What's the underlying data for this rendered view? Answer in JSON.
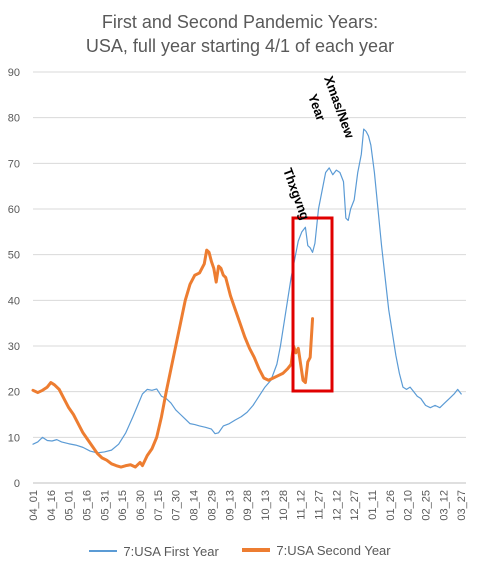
{
  "chart_data": {
    "type": "line",
    "title_line1": "First and Second Pandemic Years:",
    "title_line2": "USA, full year starting 4/1 of each year",
    "ylim": [
      0,
      90
    ],
    "yticks": [
      "0",
      "10",
      "20",
      "30",
      "40",
      "50",
      "60",
      "70",
      "80",
      "90"
    ],
    "x_labels": [
      "04_01",
      "04_16",
      "05_01",
      "05_16",
      "05_31",
      "06_15",
      "06_30",
      "07_15",
      "07_30",
      "08_14",
      "08_29",
      "09_13",
      "09_28",
      "10_13",
      "10_28",
      "11_12",
      "11_27",
      "12_12",
      "12_27",
      "01_11",
      "01_26",
      "02_10",
      "02_25",
      "03_12",
      "03_27"
    ],
    "grid": true,
    "legend_position": "bottom",
    "annotations": [
      "Thxgvng",
      "Xmas/New Year"
    ],
    "series": [
      {
        "name": "7:USA First Year",
        "color": "#5B9BD5",
        "points": [
          [
            0,
            8.5
          ],
          [
            4,
            9.0
          ],
          [
            8,
            10.0
          ],
          [
            12,
            9.3
          ],
          [
            16,
            9.2
          ],
          [
            20,
            9.5
          ],
          [
            24,
            9.0
          ],
          [
            30,
            8.6
          ],
          [
            36,
            8.3
          ],
          [
            42,
            7.8
          ],
          [
            48,
            7.0
          ],
          [
            54,
            6.6
          ],
          [
            60,
            6.8
          ],
          [
            66,
            7.2
          ],
          [
            72,
            8.5
          ],
          [
            78,
            11.0
          ],
          [
            84,
            14.5
          ],
          [
            88,
            17.0
          ],
          [
            92,
            19.5
          ],
          [
            96,
            20.5
          ],
          [
            100,
            20.3
          ],
          [
            104,
            20.6
          ],
          [
            108,
            19.0
          ],
          [
            112,
            18.5
          ],
          [
            116,
            17.5
          ],
          [
            120,
            16.0
          ],
          [
            124,
            15.0
          ],
          [
            128,
            14.0
          ],
          [
            132,
            13.0
          ],
          [
            136,
            12.8
          ],
          [
            140,
            12.5
          ],
          [
            145,
            12.2
          ],
          [
            150,
            11.8
          ],
          [
            153,
            10.8
          ],
          [
            156,
            11.0
          ],
          [
            160,
            12.5
          ],
          [
            165,
            13.0
          ],
          [
            170,
            13.8
          ],
          [
            175,
            14.5
          ],
          [
            180,
            15.5
          ],
          [
            185,
            17.0
          ],
          [
            190,
            19.0
          ],
          [
            195,
            21.0
          ],
          [
            200,
            22.5
          ],
          [
            205,
            26.0
          ],
          [
            208,
            30.0
          ],
          [
            211,
            35.0
          ],
          [
            214,
            40.0
          ],
          [
            217,
            45.0
          ],
          [
            220,
            49.0
          ],
          [
            223,
            53.0
          ],
          [
            226,
            55.0
          ],
          [
            229,
            56.0
          ],
          [
            231,
            52.0
          ],
          [
            233,
            51.5
          ],
          [
            235,
            50.5
          ],
          [
            237,
            52.5
          ],
          [
            240,
            60.0
          ],
          [
            243,
            64.0
          ],
          [
            246,
            68.0
          ],
          [
            249,
            69.0
          ],
          [
            252,
            67.5
          ],
          [
            255,
            68.5
          ],
          [
            258,
            68.0
          ],
          [
            261,
            66.0
          ],
          [
            263,
            58.0
          ],
          [
            265,
            57.5
          ],
          [
            267,
            60.0
          ],
          [
            270,
            62.0
          ],
          [
            273,
            68.0
          ],
          [
            276,
            72.0
          ],
          [
            278,
            77.5
          ],
          [
            280,
            77.0
          ],
          [
            282,
            76.0
          ],
          [
            284,
            74.0
          ],
          [
            287,
            68.0
          ],
          [
            290,
            60.0
          ],
          [
            293,
            52.0
          ],
          [
            296,
            45.0
          ],
          [
            299,
            38.0
          ],
          [
            302,
            33.0
          ],
          [
            305,
            28.0
          ],
          [
            308,
            24.0
          ],
          [
            311,
            21.0
          ],
          [
            314,
            20.5
          ],
          [
            317,
            21.0
          ],
          [
            320,
            20.0
          ],
          [
            323,
            19.0
          ],
          [
            326,
            18.5
          ],
          [
            330,
            17.0
          ],
          [
            334,
            16.5
          ],
          [
            338,
            17.0
          ],
          [
            342,
            16.5
          ],
          [
            346,
            17.5
          ],
          [
            350,
            18.5
          ],
          [
            354,
            19.5
          ],
          [
            357,
            20.5
          ],
          [
            360,
            19.5
          ]
        ]
      },
      {
        "name": "7:USA Second Year",
        "color": "#ED7D31",
        "points": [
          [
            0,
            20.3
          ],
          [
            4,
            19.8
          ],
          [
            8,
            20.3
          ],
          [
            12,
            21.0
          ],
          [
            15,
            22.0
          ],
          [
            18,
            21.5
          ],
          [
            22,
            20.5
          ],
          [
            26,
            18.5
          ],
          [
            30,
            16.5
          ],
          [
            34,
            15.0
          ],
          [
            38,
            13.0
          ],
          [
            42,
            11.0
          ],
          [
            46,
            9.5
          ],
          [
            50,
            8.0
          ],
          [
            54,
            6.5
          ],
          [
            58,
            5.5
          ],
          [
            62,
            5.0
          ],
          [
            66,
            4.2
          ],
          [
            70,
            3.8
          ],
          [
            74,
            3.5
          ],
          [
            78,
            3.8
          ],
          [
            82,
            4.0
          ],
          [
            86,
            3.5
          ],
          [
            90,
            4.5
          ],
          [
            92,
            3.8
          ],
          [
            96,
            6.0
          ],
          [
            100,
            7.5
          ],
          [
            104,
            10.0
          ],
          [
            108,
            14.5
          ],
          [
            112,
            20.0
          ],
          [
            116,
            25.0
          ],
          [
            120,
            30.0
          ],
          [
            124,
            35.0
          ],
          [
            128,
            40.0
          ],
          [
            132,
            43.5
          ],
          [
            136,
            45.5
          ],
          [
            140,
            46.0
          ],
          [
            144,
            48.0
          ],
          [
            146,
            51.0
          ],
          [
            148,
            50.5
          ],
          [
            150,
            48.5
          ],
          [
            152,
            47.0
          ],
          [
            154,
            44.0
          ],
          [
            156,
            47.5
          ],
          [
            158,
            47.0
          ],
          [
            160,
            45.5
          ],
          [
            162,
            45.0
          ],
          [
            166,
            41.0
          ],
          [
            170,
            38.0
          ],
          [
            174,
            35.0
          ],
          [
            178,
            32.0
          ],
          [
            182,
            29.5
          ],
          [
            186,
            27.5
          ],
          [
            190,
            25.0
          ],
          [
            194,
            23.0
          ],
          [
            198,
            22.5
          ],
          [
            202,
            23.0
          ],
          [
            206,
            23.5
          ],
          [
            210,
            24.0
          ],
          [
            214,
            25.0
          ],
          [
            217,
            26.0
          ],
          [
            219,
            30.0
          ],
          [
            221,
            28.5
          ],
          [
            223,
            29.5
          ],
          [
            225,
            26.0
          ],
          [
            227,
            22.5
          ],
          [
            229,
            22.0
          ],
          [
            231,
            26.5
          ],
          [
            233,
            27.5
          ],
          [
            235,
            36.0
          ]
        ]
      }
    ]
  }
}
